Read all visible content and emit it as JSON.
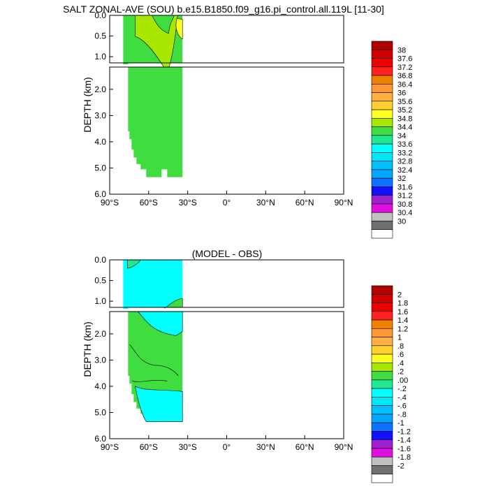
{
  "title": "SALT ZONAL-AVE (SOU) b.e15.B1850.f09_g16.pi_control.all.119L [11-30]",
  "diff_title": "(MODEL - OBS)",
  "chart_data": [
    {
      "type": "heatmap",
      "name": "salinity",
      "xlabel": "",
      "ylabel": "DEPTH (km)",
      "x_ticks": [
        "90°S",
        "60°S",
        "30°S",
        "0°",
        "30°N",
        "60°N",
        "90°N"
      ],
      "xlim": [
        -90,
        90
      ],
      "y_ticks_upper": [
        "0.0",
        "0.5",
        "1.0"
      ],
      "y_ticks_lower": [
        "2.0",
        "3.0",
        "4.0",
        "5.0",
        "6.0"
      ],
      "ylim_upper": [
        0,
        1.15
      ],
      "ylim_lower": [
        1.15,
        6.0
      ],
      "contour_levels": [
        "38",
        "37.6",
        "37.2",
        "36.8",
        "36.4",
        "36",
        "35.6",
        "35.2",
        "34.8",
        "34.4",
        "34",
        "33.6",
        "33.2",
        "32.8",
        "32.4",
        "32",
        "31.6",
        "31.2",
        "30.8",
        "30.4",
        "30"
      ],
      "colors": [
        "#b00000",
        "#d00000",
        "#ee0000",
        "#ff2020",
        "#f08000",
        "#ff9830",
        "#ffb040",
        "#ffd030",
        "#ffff20",
        "#a8e800",
        "#40dd40",
        "#20e890",
        "#00ffff",
        "#00e8f8",
        "#00c0ff",
        "#00a8ff",
        "#1070ff",
        "#1010ff",
        "#a020d0",
        "#e010e0",
        "#c0c0c0",
        "#707070",
        "#ffffff"
      ],
      "region_colors": {
        "fresh": "#40dd40",
        "salty": "#a8e800",
        "saltiest": "#ffff20",
        "core": "#40dd40"
      },
      "data_mask": {
        "lon_range": [
          -78,
          -34
        ],
        "max_depth_km": 5.35
      }
    },
    {
      "type": "heatmap",
      "name": "model-minus-obs",
      "xlabel": "",
      "ylabel": "DEPTH (km)",
      "x_ticks": [
        "90°S",
        "60°S",
        "30°S",
        "0°",
        "30°N",
        "60°N",
        "90°N"
      ],
      "xlim": [
        -90,
        90
      ],
      "y_ticks_upper": [
        "0.0",
        "0.5",
        "1.0"
      ],
      "y_ticks_lower": [
        "2.0",
        "3.0",
        "4.0",
        "5.0",
        "6.0"
      ],
      "ylim_upper": [
        0,
        1.15
      ],
      "ylim_lower": [
        1.15,
        6.0
      ],
      "contour_levels": [
        "2",
        "1.8",
        "1.6",
        "1.4",
        "1.2",
        "1",
        ".8",
        ".6",
        ".4",
        ".2",
        ".00",
        "-.2",
        "-.4",
        "-.6",
        "-.8",
        "-1",
        "-1.2",
        "-1.4",
        "-1.6",
        "-1.8",
        "-2"
      ],
      "colors": [
        "#b00000",
        "#d00000",
        "#ee0000",
        "#ff2020",
        "#f08000",
        "#ff9830",
        "#ffb040",
        "#ffd030",
        "#ffff20",
        "#a8e800",
        "#40dd40",
        "#20e890",
        "#00ffff",
        "#00e8f8",
        "#00c0ff",
        "#00a8ff",
        "#1070ff",
        "#1010ff",
        "#a020d0",
        "#e010e0",
        "#c0c0c0",
        "#707070",
        "#ffffff"
      ],
      "region_colors": {
        "background": "#00ffff",
        "positive": "#40dd40",
        "slightly_negative": "#20e890"
      },
      "data_mask": {
        "lon_range": [
          -78,
          -34
        ],
        "max_depth_km": 5.35
      }
    }
  ]
}
